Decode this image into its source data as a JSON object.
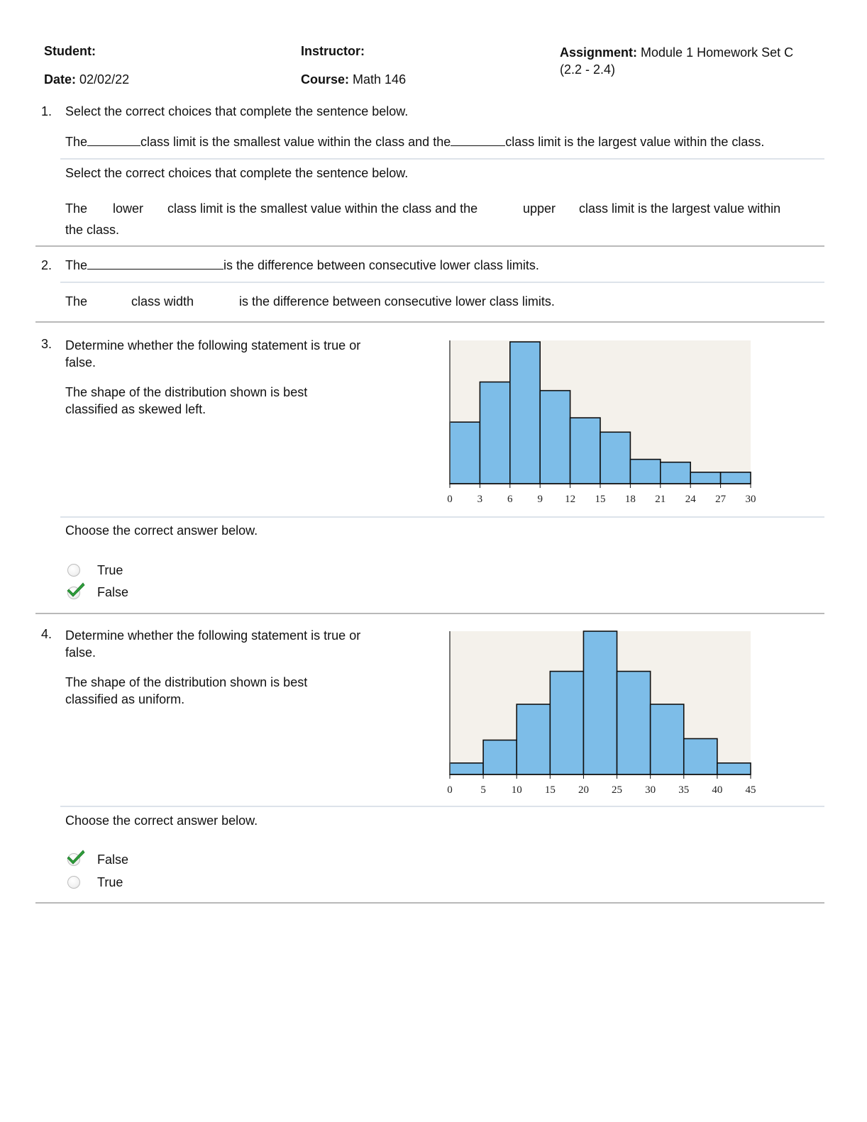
{
  "header": {
    "student_label": "Student:",
    "instructor_label": "Instructor:",
    "assignment_label": "Assignment:",
    "assignment_value_line1": "Module 1 Homework Set C",
    "assignment_value_line2": "(2.2 - 2.4)",
    "date_label": "Date:",
    "date_value": "02/02/22",
    "course_label": "Course:",
    "course_value": "Math 146"
  },
  "q1": {
    "number": "1.",
    "prompt": "Select the correct choices that complete the sentence below.",
    "sentence_part1": "The",
    "sentence_part2": "class limit is the smallest value within the class and the",
    "sentence_part3": "class limit is the largest value within the class.",
    "answer_prompt": "Select the correct choices that complete the sentence below.",
    "answer_the": "The",
    "answer_choice1": "lower",
    "answer_middle": "class limit is the smallest value within the class and the",
    "answer_choice2": "upper",
    "answer_end_line1": "class limit is the largest value within",
    "answer_end_line2": "the class."
  },
  "q2": {
    "number": "2.",
    "sentence_part1": "The",
    "sentence_part2": "is the difference between consecutive lower class limits.",
    "answer_the": "The",
    "answer_choice": "class width",
    "answer_end": "is the difference between consecutive lower class limits."
  },
  "q3": {
    "number": "3.",
    "prompt_line1": "Determine whether the following statement is true or",
    "prompt_line2": "false.",
    "statement_line1": "The shape of the distribution shown is best",
    "statement_line2": "classified as skewed left.",
    "choose_prompt": "Choose the correct answer below.",
    "options": [
      {
        "label": "True",
        "selected": false
      },
      {
        "label": "False",
        "selected": true
      }
    ]
  },
  "q4": {
    "number": "4.",
    "prompt_line1": "Determine whether the following statement is true or",
    "prompt_line2": "false.",
    "statement_line1": "The shape of the distribution shown is best",
    "statement_line2": "classified as uniform.",
    "choose_prompt": "Choose the correct answer below.",
    "options": [
      {
        "label": "False",
        "selected": true
      },
      {
        "label": "True",
        "selected": false
      }
    ]
  },
  "colors": {
    "bar_fill": "#7dbde8",
    "plot_background": "#f4f1eb",
    "check_green": "#2e9e3a"
  },
  "chart_data": [
    {
      "type": "bar",
      "title": "",
      "xlabel": "",
      "ylabel": "",
      "bin_edges": [
        0,
        3,
        6,
        9,
        12,
        15,
        18,
        21,
        24,
        27,
        30
      ],
      "x_ticks": [
        "0",
        "3",
        "6",
        "9",
        "12",
        "15",
        "18",
        "21",
        "24",
        "27",
        "30"
      ],
      "values": [
        43,
        71,
        99,
        65,
        46,
        36,
        17,
        15,
        8,
        8
      ],
      "ylim": [
        0,
        100
      ],
      "grid": false
    },
    {
      "type": "bar",
      "title": "",
      "xlabel": "",
      "ylabel": "",
      "bin_edges": [
        0,
        5,
        10,
        15,
        20,
        25,
        30,
        35,
        40,
        45
      ],
      "x_ticks": [
        "0",
        "5",
        "10",
        "15",
        "20",
        "25",
        "30",
        "35",
        "40",
        "45"
      ],
      "values": [
        8,
        24,
        49,
        72,
        100,
        72,
        49,
        25,
        8
      ],
      "ylim": [
        0,
        100
      ],
      "grid": false
    }
  ]
}
